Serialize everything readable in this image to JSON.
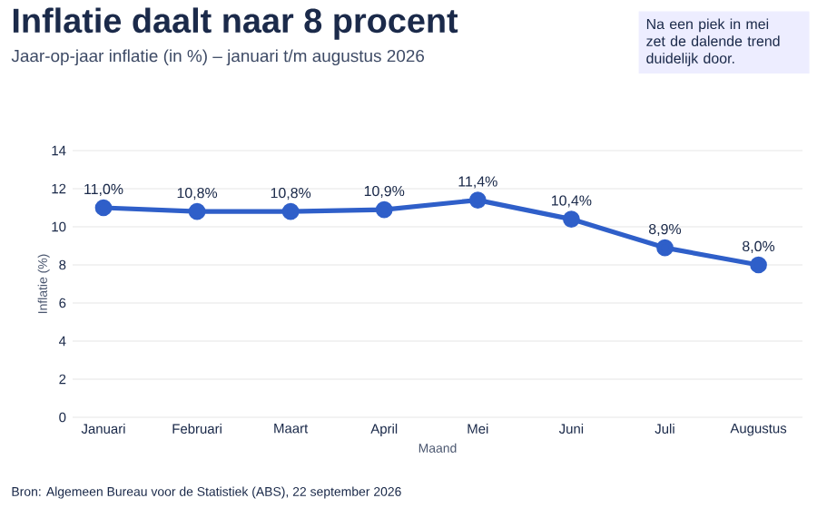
{
  "chart_data": {
    "type": "line",
    "title": "Inflatie daalt naar 8 procent",
    "subtitle": "Jaar-op-jaar inflatie (in %) – januari t/m augustus 2026",
    "xlabel": "Maand",
    "ylabel": "Inflatie (%)",
    "categories": [
      "Januari",
      "Februari",
      "Maart",
      "April",
      "Mei",
      "Juni",
      "Juli",
      "Augustus"
    ],
    "series": [
      {
        "color": "#2f5fc9",
        "values": [
          11.0,
          10.8,
          10.8,
          10.9,
          11.4,
          10.4,
          8.9,
          8.0
        ],
        "value_labels": [
          "11,0%",
          "10,8%",
          "10,8%",
          "10,9%",
          "11,4%",
          "10,4%",
          "8,9%",
          "8,0%"
        ]
      }
    ],
    "ylim": [
      0,
      14
    ],
    "yticks": [
      0,
      2,
      4,
      6,
      8,
      10,
      12,
      14
    ],
    "grid": "y",
    "marker": "circle",
    "line_style": "solid",
    "annotations": [
      "Na een piek in mei zet de dalende trend duidelijk door.",
      "Bron: Algemeen Bureau voor de Statistiek (ABS), 22 september 2026"
    ]
  }
}
